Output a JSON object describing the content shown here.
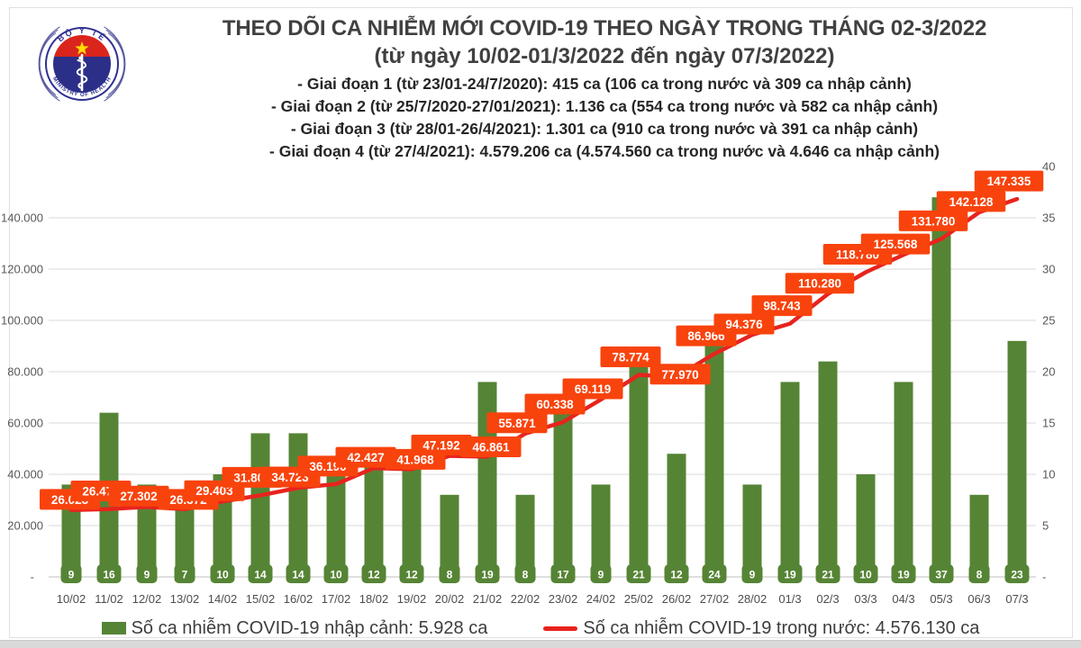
{
  "header": {
    "logo": {
      "top_text": "BỘ Y TẾ",
      "bottom_text": "MINISTRY OF HEALTH"
    },
    "title_line1": "THEO DÕI CA NHIỄM MỚI COVID-19 THEO NGÀY TRONG THÁNG 02-3/2022",
    "title_line2": "(từ ngày 10/02-01/3/2022 đến ngày 07/3/2022)",
    "notes": [
      "- Giai đoạn 1 (từ 23/01-24/7/2020): 415 ca (106 ca trong nước và 309 ca nhập cảnh)",
      "- Giai đoạn 2 (từ 25/7/2020-27/01/2021): 1.136 ca (554 ca trong nước và 582 ca nhập cảnh)",
      "- Giai đoạn 3 (từ 28/01-26/4/2021): 1.301 ca (910 ca trong nước và 391 ca nhập cảnh)",
      "- Giai đoạn 4 (từ 27/4/2021): 4.579.206 ca (4.574.560 ca trong nước và 4.646 ca nhập cảnh)"
    ]
  },
  "chart_data": {
    "type": "combo-bar-line",
    "categories": [
      "10/02",
      "11/02",
      "12/02",
      "13/02",
      "14/02",
      "15/02",
      "16/02",
      "17/02",
      "18/02",
      "19/02",
      "20/02",
      "21/02",
      "22/02",
      "23/02",
      "24/02",
      "25/02",
      "26/02",
      "27/02",
      "28/02",
      "01/3",
      "02/3",
      "03/3",
      "04/3",
      "05/3",
      "06/3",
      "07/3"
    ],
    "series": [
      {
        "name": "Số ca nhiễm COVID-19 nhập cảnh",
        "type": "bar",
        "axis": "right",
        "color": "#568435",
        "values": [
          9,
          16,
          9,
          7,
          10,
          14,
          14,
          10,
          12,
          12,
          8,
          19,
          8,
          17,
          9,
          21,
          12,
          24,
          9,
          19,
          21,
          10,
          19,
          37,
          8,
          23
        ]
      },
      {
        "name": "Số ca nhiễm COVID-19 trong nước",
        "type": "line",
        "axis": "left",
        "color": "#e8231d",
        "label_bg": "#f8430d",
        "values": [
          26023,
          26471,
          27302,
          26372,
          29403,
          31800,
          34723,
          36190,
          42427,
          41968,
          47192,
          46861,
          55871,
          60338,
          69119,
          78774,
          77970,
          86966,
          94376,
          98743,
          110280,
          118780,
          125568,
          131780,
          142128,
          147335
        ],
        "labels": [
          "26.023",
          "26.471",
          "27.302",
          "26.372",
          "29.403",
          "31.800",
          "34.723",
          "36.190",
          "42.427",
          "41.968",
          "47.192",
          "46.861",
          "55.871",
          "60.338",
          "69.119",
          "78.774",
          "77.970",
          "86.966",
          "94.376",
          "98.743",
          "110.280",
          "118.780",
          "125.568",
          "131.780",
          "142.128",
          "147.335"
        ]
      }
    ],
    "left_axis": {
      "max": 160000,
      "tick_values": [
        140000,
        120000,
        100000,
        80000,
        60000,
        40000,
        20000,
        0
      ],
      "tick_labels": [
        "140.000",
        "120.000",
        "100.000",
        "80.000",
        "60.000",
        "40.000",
        "20.000",
        "-"
      ]
    },
    "right_axis": {
      "max": 40,
      "tick_values": [
        40,
        35,
        30,
        25,
        20,
        15,
        10,
        5,
        0
      ],
      "tick_labels": [
        "40",
        "35",
        "30",
        "25",
        "20",
        "15",
        "10",
        "5",
        "-"
      ]
    },
    "grid": true,
    "legend_position": "bottom",
    "title": "THEO DÕI CA NHIỄM MỚI COVID-19 THEO NGÀY TRONG THÁNG 02-3/2022"
  },
  "legend": {
    "bar_label": "Số ca nhiễm COVID-19 nhập cảnh: 5.928 ca",
    "line_label": "Số ca nhiễm COVID-19 trong nước: 4.576.130 ca"
  },
  "colors": {
    "bar": "#568435",
    "line": "#e8231d",
    "line_label_bg": "#f8430d",
    "grid": "#dadada",
    "axis_line": "#bfbfbf",
    "axis_text": "#595959",
    "date_text": "#4d4d4d"
  }
}
